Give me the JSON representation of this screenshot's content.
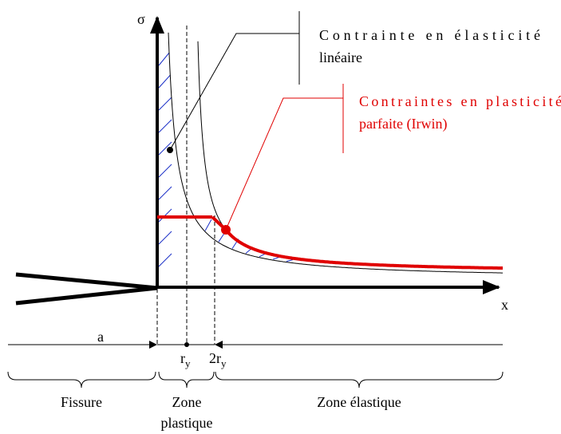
{
  "axes": {
    "y_label": "σ",
    "x_label": "x"
  },
  "annotations": [
    {
      "lines": [
        "Contrainte en élasticité",
        "linéaire"
      ]
    },
    {
      "lines": [
        "Contraintes en plasticité",
        "parfaite (Irwin)"
      ]
    }
  ],
  "dimensions": {
    "a": "a",
    "ry": {
      "main": "r",
      "sub": "y"
    },
    "two_ry": {
      "main": "2r",
      "sub": "y"
    }
  },
  "zones": [
    {
      "lines": [
        "Fissure"
      ]
    },
    {
      "lines": [
        "Zone",
        "plastique"
      ]
    },
    {
      "lines": [
        "Zone élastique"
      ]
    }
  ]
}
